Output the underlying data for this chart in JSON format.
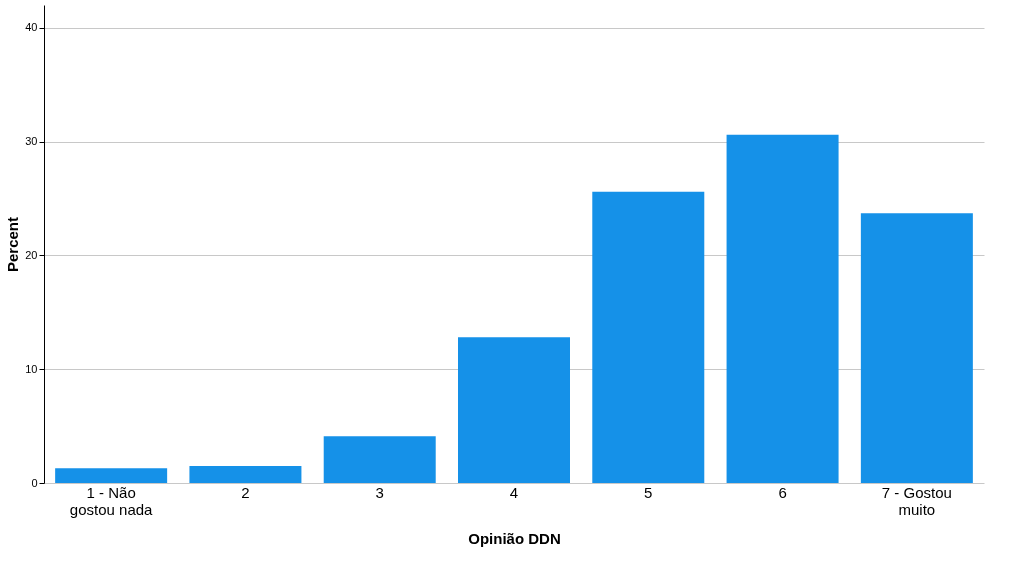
{
  "chart_data": {
    "type": "bar",
    "xlabel": "Opinião DDN",
    "ylabel": "Percent",
    "categories": [
      "1 - Não gostou nada",
      "2",
      "3",
      "4",
      "5",
      "6",
      "7 - Gostou muito"
    ],
    "values": [
      1.3,
      1.5,
      4.1,
      12.8,
      25.6,
      30.6,
      23.7
    ],
    "color": "#1591e8",
    "ylim": [
      0,
      42
    ],
    "yticks": [
      0,
      10,
      20,
      30,
      40
    ],
    "grid": "y"
  }
}
